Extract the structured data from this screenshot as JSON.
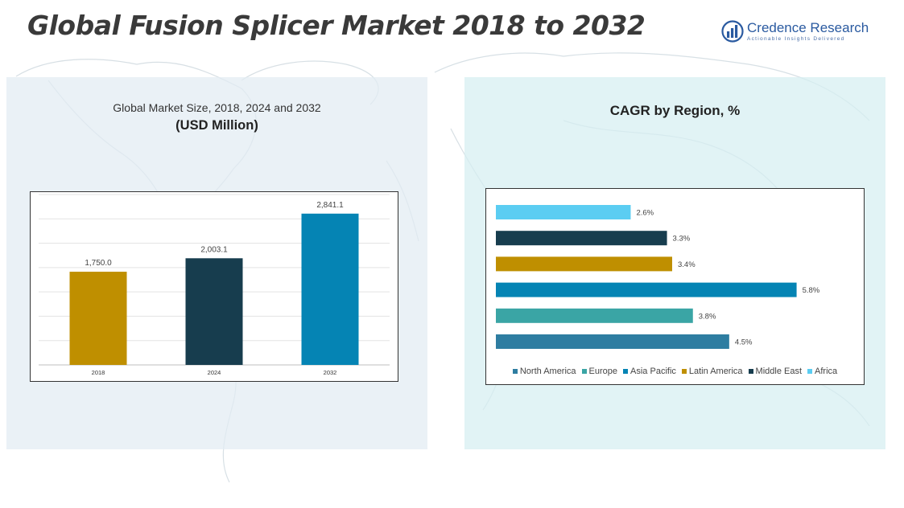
{
  "header": {
    "title": "Global Fusion Splicer Market 2018 to 2032"
  },
  "logo": {
    "name": "Credence Research",
    "tagline": "Actionable Insights Delivered",
    "icon": "bar-chart-logo-icon",
    "color": "#2a5aa0"
  },
  "left_panel": {
    "subtitle": "Global Market Size, 2018, 2024 and 2032",
    "unit": "(USD Million)"
  },
  "right_panel": {
    "title": "CAGR by Region, %"
  },
  "chart_data": [
    {
      "type": "bar",
      "title": "Global Market Size, 2018, 2024 and 2032",
      "ylabel": "(USD Million)",
      "categories": [
        "2018",
        "2024",
        "2032"
      ],
      "values": [
        1750.0,
        2003.1,
        2841.1
      ],
      "value_labels": [
        "1,750.0",
        "2,003.1",
        "2,841.1"
      ],
      "colors": [
        "#bf8f00",
        "#173d4e",
        "#0584b4"
      ],
      "ylim": [
        0,
        3200
      ],
      "grid": true
    },
    {
      "type": "bar",
      "orientation": "horizontal",
      "title": "CAGR by Region, %",
      "categories": [
        "Africa",
        "Middle East",
        "Latin America",
        "Asia Pacific",
        "Europe",
        "North America"
      ],
      "values": [
        2.6,
        3.3,
        3.4,
        5.8,
        3.8,
        4.5
      ],
      "value_labels": [
        "2.6%",
        "3.3%",
        "3.4%",
        "5.8%",
        "3.8%",
        "4.5%"
      ],
      "colors": [
        "#5bcdf2",
        "#173d4e",
        "#bf8f00",
        "#0584b4",
        "#3aa5a5",
        "#2e7da1"
      ],
      "xlim": [
        0,
        6.8
      ],
      "legend_placement": "bottom",
      "legend": [
        {
          "name": "North America",
          "color": "#2e7da1"
        },
        {
          "name": "Europe",
          "color": "#3aa5a5"
        },
        {
          "name": "Asia Pacific",
          "color": "#0584b4"
        },
        {
          "name": "Latin America",
          "color": "#bf8f00"
        },
        {
          "name": "Middle East",
          "color": "#173d4e"
        },
        {
          "name": "Africa",
          "color": "#5bcdf2"
        }
      ]
    }
  ]
}
